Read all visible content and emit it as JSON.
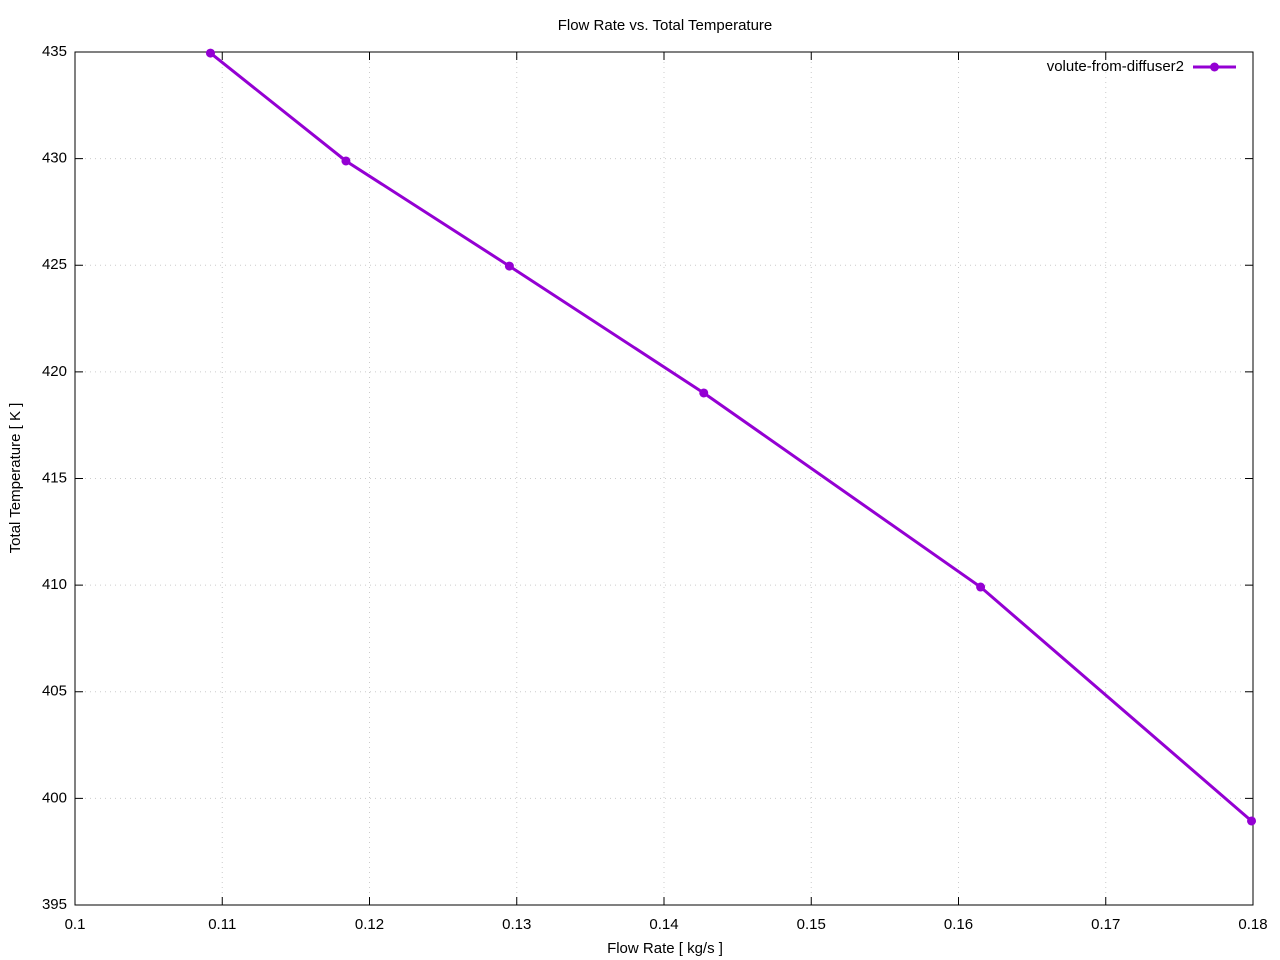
{
  "chart_data": {
    "type": "line",
    "title": "Flow Rate vs. Total Temperature",
    "x_label": "Flow Rate [ kg/s ]",
    "y_label": "Total Temperature [ K ]",
    "x": [
      0.1092,
      0.1184,
      0.1295,
      0.1427,
      0.1615,
      0.1799
    ],
    "series": [
      {
        "name": "volute-from-diffuser2",
        "color": "#9400d3",
        "values": [
          434.95,
          429.89,
          424.96,
          419.01,
          409.91,
          398.94
        ]
      }
    ],
    "xlim": [
      0.1,
      0.18
    ],
    "xticks": [
      0.1,
      0.11,
      0.12,
      0.13,
      0.14,
      0.15,
      0.16,
      0.17,
      0.18
    ],
    "ylim": [
      395,
      435
    ],
    "yticks": [
      395,
      400,
      405,
      410,
      415,
      420,
      425,
      430,
      435
    ],
    "grid": true,
    "legend": "top-right"
  }
}
